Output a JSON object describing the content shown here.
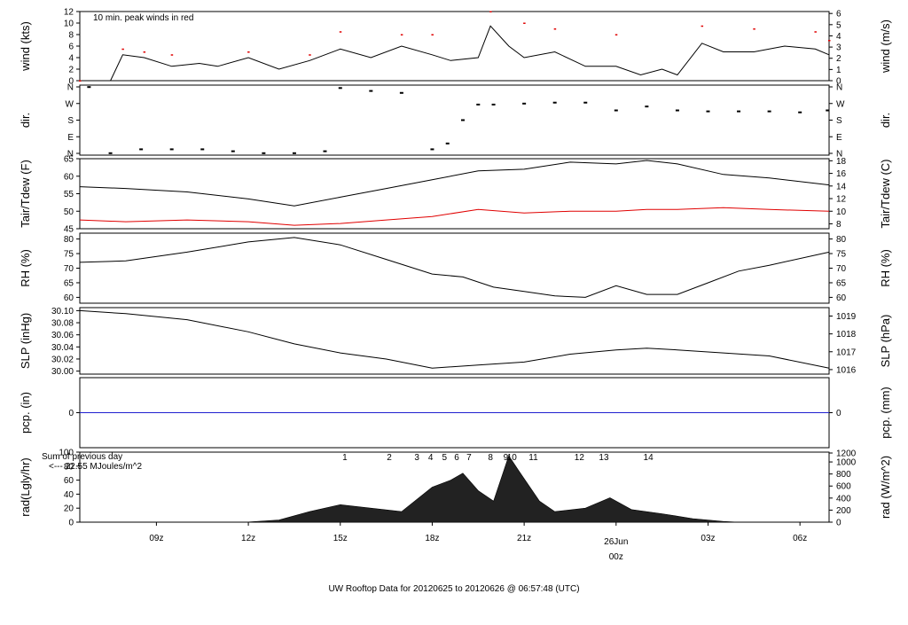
{
  "title": "UW Rooftop Data for 20120625  to  20120626 @ 06:57:48  (UTC)",
  "colors": {
    "title": "#2020d0",
    "peak": "#e00000",
    "dew": "#e00000",
    "pcp": "#2020d0",
    "annot": "#9b00c8",
    "date": "#e00000"
  },
  "x_axis": {
    "ticks": [
      "09z",
      "12z",
      "15z",
      "18z",
      "21z",
      "00z",
      "03z",
      "06z"
    ],
    "date_label": "26Jun",
    "date_tick": "00z",
    "hours_start": 6.5,
    "hours_end": 30.95
  },
  "chart_data": [
    {
      "id": "wind",
      "type": "line",
      "left_label": "wind (kts)",
      "right_label": "wind (m/s)",
      "annotation": "10 min. peak winds in red",
      "ylim": [
        0,
        12
      ],
      "left_ticks": [
        "0",
        "2",
        "4",
        "6",
        "8",
        "10",
        "12"
      ],
      "right_ticks": [
        "0",
        "1",
        "2",
        "3",
        "4",
        "5",
        "6"
      ],
      "series": [
        {
          "x": [
            6.5,
            7.5,
            7.9,
            8.6,
            9.5,
            10.4,
            11.0,
            12.0,
            13.0,
            14.0,
            15.0,
            16.0,
            17.0,
            18.0,
            18.6,
            19.5,
            19.9,
            20.5,
            21.0,
            22.0,
            23.0,
            24.0,
            24.8,
            25.5,
            26.0,
            26.8,
            27.5,
            28.5,
            29.5,
            30.5,
            30.95
          ],
          "y": [
            0,
            0,
            4.5,
            4,
            2.5,
            3,
            2.5,
            4,
            2,
            3.5,
            5.5,
            4,
            6,
            4.5,
            3.5,
            4,
            9.5,
            6,
            4,
            5,
            2.5,
            2.5,
            1,
            2,
            1,
            6.5,
            5,
            5,
            6,
            5.5,
            4.5
          ]
        },
        {
          "x": [
            6.5,
            7.9,
            8.6,
            9.5,
            12.0,
            14.0,
            15.0,
            17.0,
            18.0,
            19.9,
            21.0,
            22.0,
            24.0,
            26.8,
            28.5,
            30.5,
            30.95
          ],
          "y": [
            0,
            5.5,
            5,
            4.5,
            5,
            4.5,
            8.5,
            8,
            8,
            12,
            10,
            9,
            8,
            9.5,
            9,
            8.5,
            7
          ]
        }
      ]
    },
    {
      "id": "dir",
      "type": "scatter",
      "left_label": "dir.",
      "right_label": "dir.",
      "ylim": [
        0,
        360
      ],
      "left_ticks": [
        "N",
        "E",
        "S",
        "W",
        "N"
      ],
      "right_ticks": [
        "N",
        "E",
        "S",
        "W",
        "N"
      ],
      "series": [
        {
          "x": [
            6.8,
            7.5,
            8.5,
            9.5,
            10.5,
            11.5,
            12.5,
            13.5,
            14.5,
            15.0,
            16.0,
            17.0,
            18.0,
            18.5,
            19.0,
            19.5,
            20.0,
            21.0,
            22.0,
            23.0,
            24.0,
            25.0,
            26.0,
            27.0,
            28.0,
            29.0,
            30.0,
            30.9
          ],
          "y": [
            350,
            10,
            30,
            30,
            30,
            20,
            10,
            10,
            20,
            345,
            330,
            320,
            30,
            60,
            180,
            260,
            260,
            265,
            270,
            270,
            230,
            250,
            230,
            225,
            225,
            225,
            220,
            230
          ]
        }
      ]
    },
    {
      "id": "temp",
      "type": "line",
      "left_label": "Tair/Tdew (F)",
      "right_label": "Tair/Tdew (C)",
      "ylim": [
        45,
        65
      ],
      "left_ticks": [
        "45",
        "50",
        "55",
        "60",
        "65"
      ],
      "right_ticks": [
        "8",
        "10",
        "12",
        "14",
        "16",
        "18"
      ],
      "series": [
        {
          "x": [
            6.5,
            8,
            10,
            12,
            13.5,
            15,
            16.5,
            18,
            19.5,
            21,
            22.5,
            24,
            25,
            26,
            27.5,
            29,
            30.95
          ],
          "y": [
            57,
            56.5,
            55.5,
            53.5,
            51.5,
            54,
            56.5,
            59,
            61.5,
            62,
            64,
            63.5,
            64.5,
            63.5,
            60.5,
            59.5,
            57.5
          ]
        },
        {
          "x": [
            6.5,
            8,
            10,
            12,
            13.5,
            15,
            16.5,
            18,
            19.5,
            21,
            22.5,
            24,
            25,
            26,
            27.5,
            29,
            30.95
          ],
          "y": [
            47.5,
            47,
            47.5,
            47,
            46,
            46.5,
            47.5,
            48.5,
            50.5,
            49.5,
            50,
            50,
            50.5,
            50.5,
            51,
            50.5,
            50
          ]
        }
      ]
    },
    {
      "id": "rh",
      "type": "line",
      "left_label": "RH (%)",
      "right_label": "RH (%)",
      "ylim": [
        58,
        82
      ],
      "left_ticks": [
        "60",
        "65",
        "70",
        "75",
        "80"
      ],
      "right_ticks": [
        "60",
        "65",
        "70",
        "75",
        "80"
      ],
      "series": [
        {
          "x": [
            6.5,
            8,
            10,
            12,
            13.5,
            15,
            16.5,
            18,
            19,
            20,
            21,
            22,
            23,
            24,
            25,
            26,
            27,
            28,
            29,
            30.95
          ],
          "y": [
            72,
            72.5,
            75.5,
            79,
            80.5,
            78,
            73,
            68,
            67,
            63.5,
            62,
            60.5,
            60,
            64,
            61,
            61,
            65,
            69,
            71,
            75.5
          ]
        }
      ]
    },
    {
      "id": "slp",
      "type": "line",
      "left_label": "SLP (inHg)",
      "right_label": "SLP (hPa)",
      "ylim": [
        29.995,
        30.105
      ],
      "left_ticks": [
        "30.00",
        "30.02",
        "30.04",
        "30.06",
        "30.08",
        "30.10"
      ],
      "right_ticks": [
        "1016",
        "1017",
        "1018",
        "1019"
      ],
      "series": [
        {
          "x": [
            6.5,
            8,
            10,
            12,
            13.5,
            15,
            16.5,
            18,
            19.5,
            21,
            22.5,
            24,
            25,
            26,
            27.5,
            29,
            30.95
          ],
          "y": [
            30.1,
            30.095,
            30.085,
            30.065,
            30.045,
            30.03,
            30.02,
            30.005,
            30.01,
            30.015,
            30.028,
            30.035,
            30.038,
            30.035,
            30.03,
            30.025,
            30.005
          ]
        }
      ]
    },
    {
      "id": "pcp",
      "type": "line",
      "left_label": "pcp. (in)",
      "right_label": "pcp. (mm)",
      "ylim": [
        -1,
        1
      ],
      "left_ticks": [
        "0"
      ],
      "right_ticks": [
        "0"
      ],
      "series": [
        {
          "x": [
            6.5,
            30.95
          ],
          "y": [
            0,
            0
          ]
        }
      ]
    },
    {
      "id": "rad",
      "type": "area",
      "left_label": "rad(Lgly/hr)",
      "right_label": "rad (W/m^2)",
      "annotation_line1": "Sum of previous day",
      "annotation_line2": "<--- 22.55 MJoules/m^2",
      "ylim": [
        0,
        100
      ],
      "left_ticks": [
        "0",
        "20",
        "40",
        "60",
        "80",
        "100"
      ],
      "right_ticks": [
        "0",
        "200",
        "400",
        "600",
        "800",
        "1000",
        "1200"
      ],
      "markers": [
        "1",
        "2",
        "3",
        "4",
        "5",
        "6",
        "7",
        "8",
        "9",
        "10",
        "11",
        "12",
        "13",
        "14"
      ],
      "marker_x": [
        15.15,
        16.6,
        17.5,
        17.95,
        18.4,
        18.8,
        19.2,
        19.9,
        20.4,
        20.6,
        21.3,
        22.8,
        23.6,
        25.05
      ],
      "series": [
        {
          "x": [
            11.9,
            13.0,
            14.0,
            15.0,
            16.0,
            17.0,
            18.0,
            18.6,
            19.0,
            19.5,
            20.0,
            20.5,
            20.8,
            21.5,
            22.0,
            23.0,
            23.8,
            24.5,
            25.5,
            26.5,
            27.5,
            28.0
          ],
          "y": [
            0,
            3,
            15,
            25,
            20,
            15,
            50,
            60,
            70,
            45,
            30,
            95,
            75,
            30,
            15,
            20,
            35,
            18,
            12,
            5,
            1,
            0
          ]
        }
      ]
    }
  ]
}
